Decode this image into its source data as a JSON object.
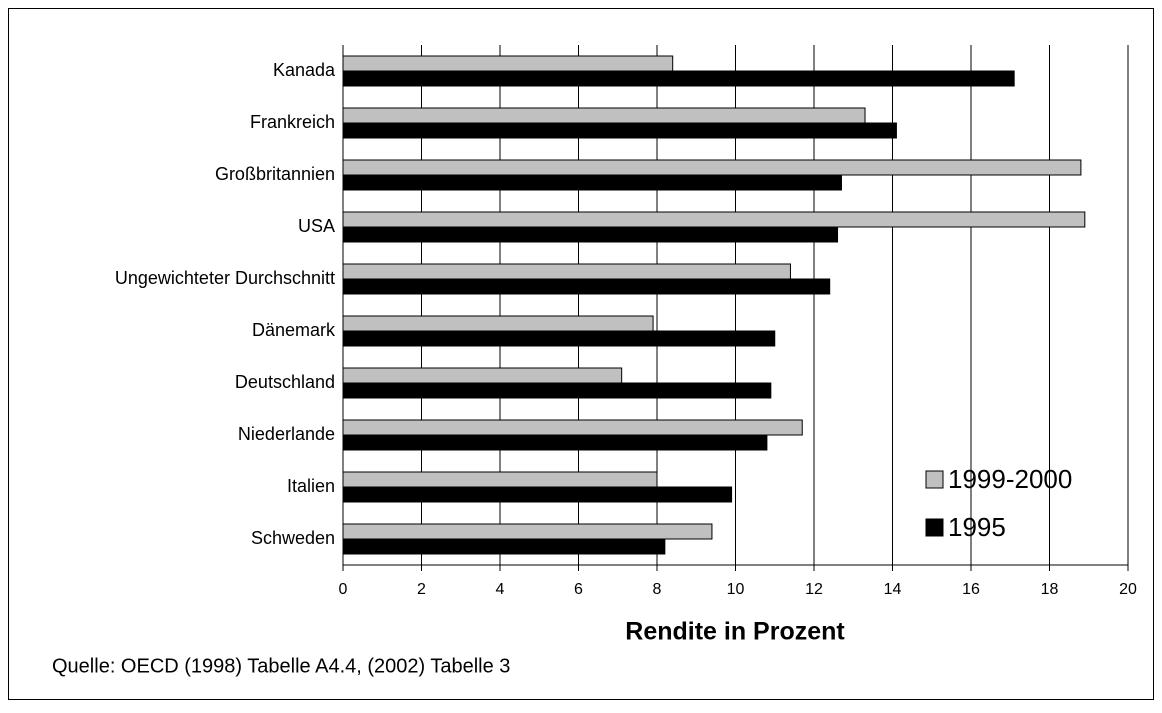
{
  "chart_data": {
    "type": "bar",
    "orientation": "horizontal",
    "x_label": "Rendite in Prozent",
    "source": "Quelle: OECD (1998) Tabelle A4.4, (2002) Tabelle 3",
    "categories": [
      "Kanada",
      "Frankreich",
      "Großbritannien",
      "USA",
      "Ungewichteter Durchschnitt",
      "Dänemark",
      "Deutschland",
      "Niederlande",
      "Italien",
      "Schweden"
    ],
    "series": [
      {
        "name": "1999-2000",
        "color": "#c0c0c0",
        "values": [
          8.4,
          13.3,
          18.8,
          18.9,
          11.4,
          7.9,
          7.1,
          11.7,
          8.0,
          9.4
        ]
      },
      {
        "name": "1995",
        "color": "#000000",
        "values": [
          17.1,
          14.1,
          12.7,
          12.6,
          12.4,
          11.0,
          10.9,
          10.8,
          9.9,
          8.2
        ]
      }
    ],
    "xlim": [
      0,
      20
    ],
    "xticks": [
      0,
      2,
      4,
      6,
      8,
      10,
      12,
      14,
      16,
      18,
      20
    ],
    "grid": true,
    "legend": "lower right"
  }
}
